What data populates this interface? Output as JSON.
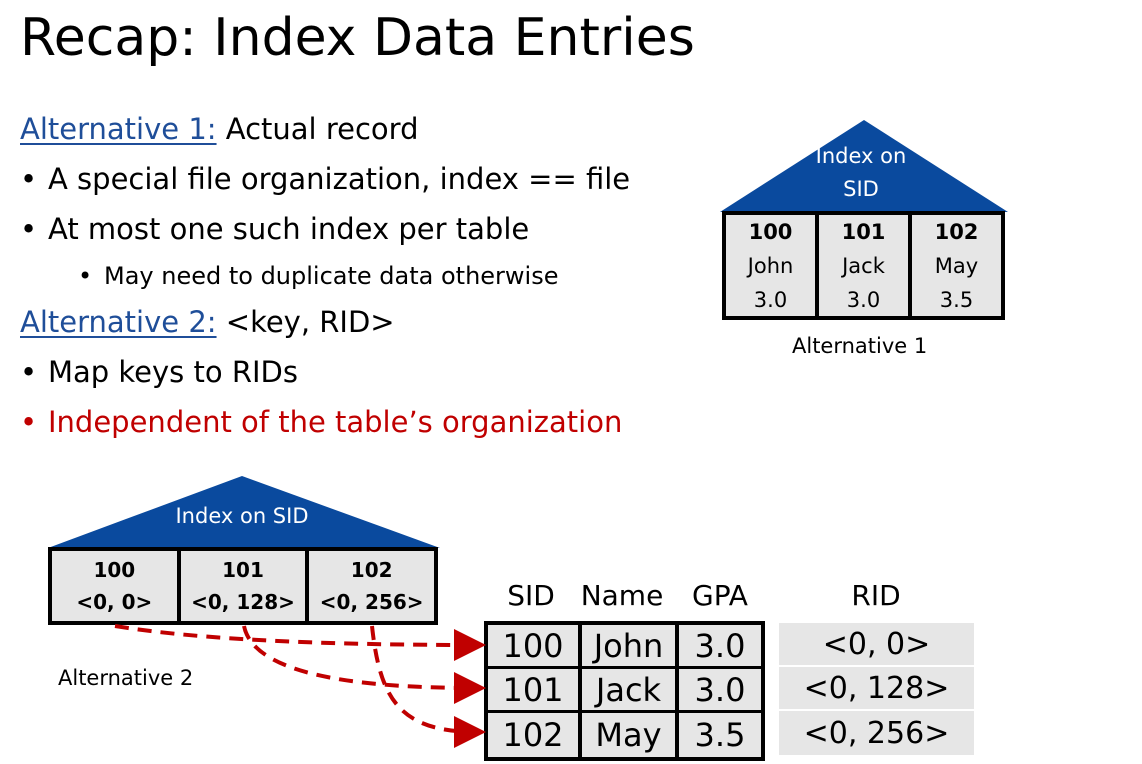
{
  "title": "Recap: Index Data Entries",
  "alt1": {
    "label": "Alternative 1:",
    "text": " Actual record"
  },
  "bullets1": [
    "A special file organization, index == file",
    "At most one such index per table"
  ],
  "sub_bullet": "May need to duplicate data otherwise",
  "alt2": {
    "label": "Alternative 2:",
    "text": " <key, RID>"
  },
  "bullets2": [
    "Map keys to RIDs",
    "Independent of the table’s organization"
  ],
  "colors": {
    "link_blue": "#1f4e99",
    "red": "#c00000",
    "triangle_blue": "#0a4a9e",
    "cell_gray": "#e6e6e6"
  },
  "diagram1": {
    "index_label_line1": "Index on",
    "index_label_line2": "SID",
    "entries": [
      {
        "sid": "100",
        "name": "John",
        "gpa": "3.0"
      },
      {
        "sid": "101",
        "name": "Jack",
        "gpa": "3.0"
      },
      {
        "sid": "102",
        "name": "May",
        "gpa": "3.5"
      }
    ],
    "caption": "Alternative 1"
  },
  "diagram2": {
    "index_label": "Index on SID",
    "entries": [
      {
        "key": "100",
        "rid": "<0, 0>"
      },
      {
        "key": "101",
        "rid": "<0, 128>"
      },
      {
        "key": "102",
        "rid": "<0, 256>"
      }
    ],
    "caption": "Alternative 2",
    "headers": [
      "SID",
      "Name",
      "GPA",
      "RID"
    ],
    "rows": [
      {
        "sid": "100",
        "name": "John",
        "gpa": "3.0",
        "rid": "<0, 0>"
      },
      {
        "sid": "101",
        "name": "Jack",
        "gpa": "3.0",
        "rid": "<0, 128>"
      },
      {
        "sid": "102",
        "name": "May",
        "gpa": "3.5",
        "rid": "<0, 256>"
      }
    ]
  }
}
